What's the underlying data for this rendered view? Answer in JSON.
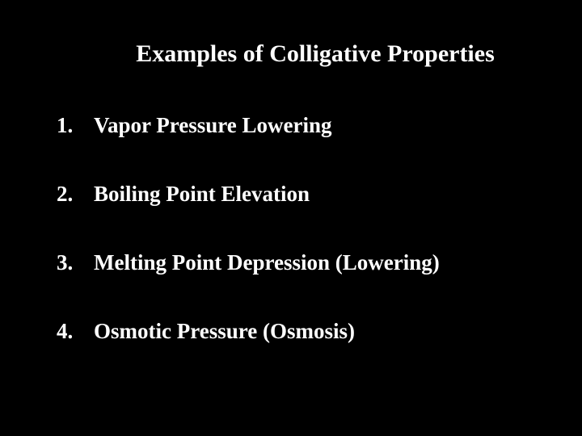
{
  "slide": {
    "background_color": "#000000",
    "text_color": "#ffffff",
    "title": "Examples of Colligative Properties",
    "title_fontsize": 30,
    "item_fontsize": 27,
    "font_family": "Times New Roman, serif",
    "items": [
      {
        "number": "1.",
        "text": "Vapor Pressure Lowering"
      },
      {
        "number": "2.",
        "text": "Boiling Point Elevation"
      },
      {
        "number": "3.",
        "text": "Melting Point Depression (Lowering)"
      },
      {
        "number": "4.",
        "text": "Osmotic Pressure (Osmosis)"
      }
    ]
  }
}
